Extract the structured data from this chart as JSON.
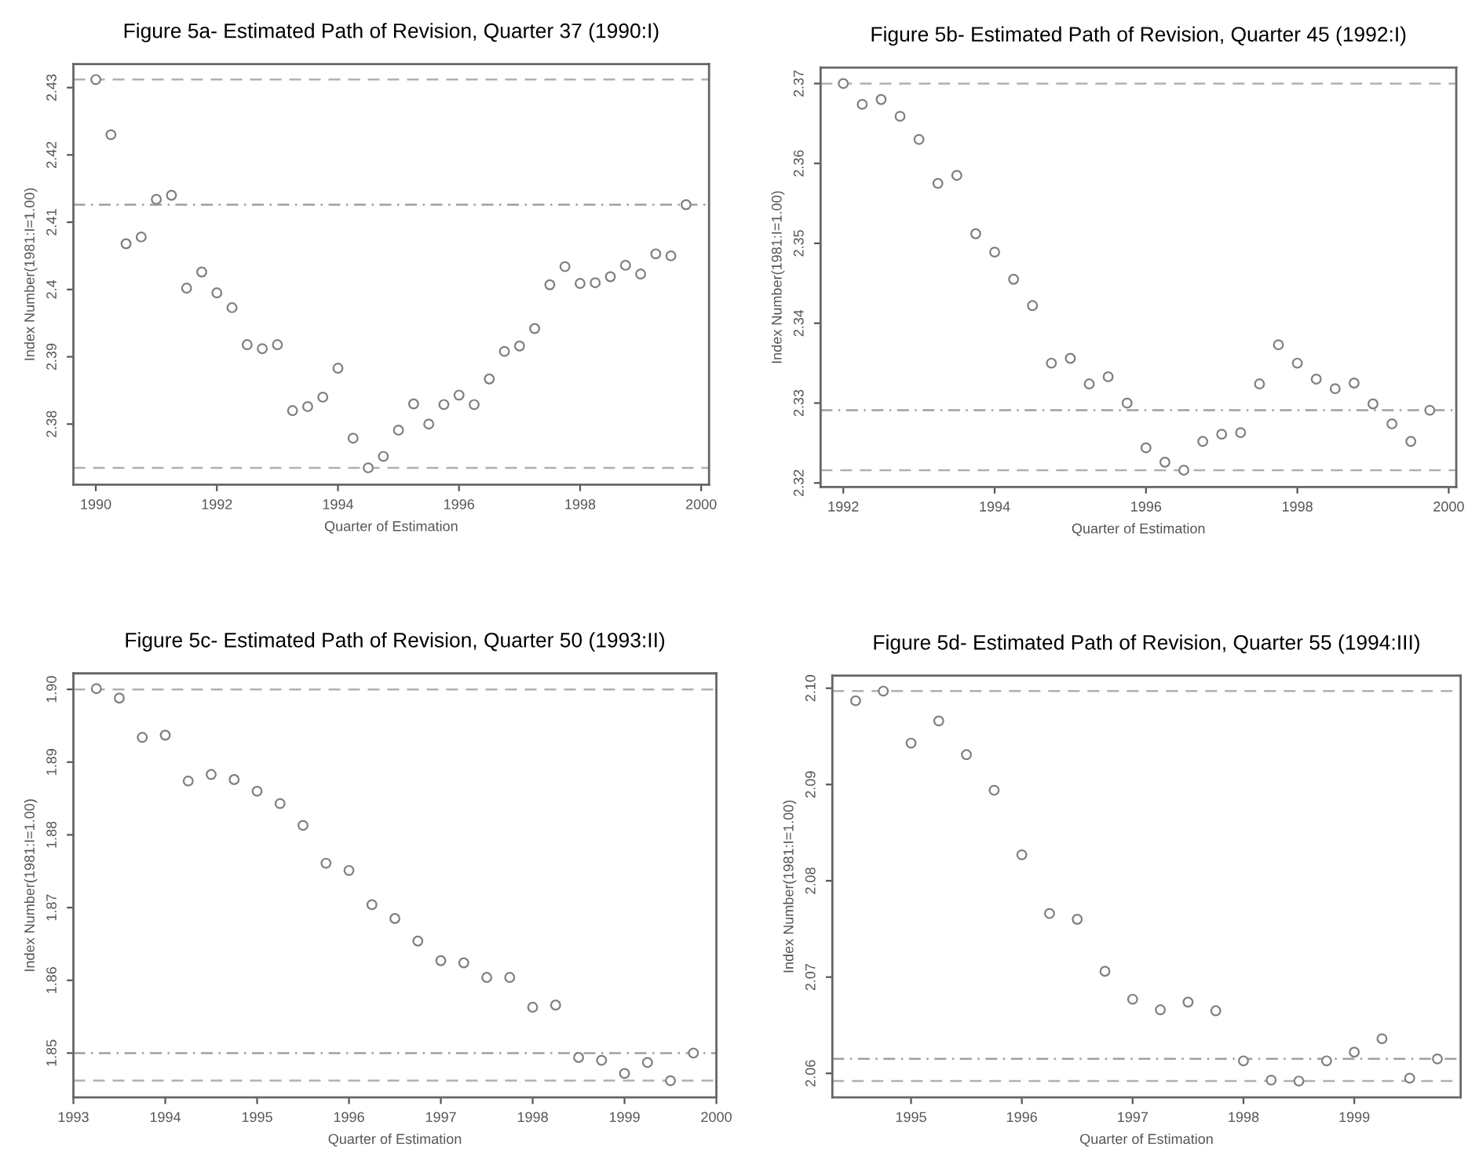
{
  "chart_data": [
    {
      "type": "scatter",
      "title": "Figure 5a- Estimated Path of Revision, Quarter 37 (1990:I)",
      "xlabel": "Quarter of Estimation",
      "ylabel": "Index Number(1981:I=1.00)",
      "marker": "circle",
      "grid": false,
      "color": "#7f7f7f",
      "x": [
        1990,
        1990.25,
        1990.5,
        1990.75,
        1991,
        1991.25,
        1991.5,
        1991.75,
        1992,
        1992.25,
        1992.5,
        1992.75,
        1993,
        1993.25,
        1993.5,
        1993.75,
        1994,
        1994.25,
        1994.5,
        1994.75,
        1995,
        1995.25,
        1995.5,
        1995.75,
        1996,
        1996.25,
        1996.5,
        1996.75,
        1997,
        1997.25,
        1997.5,
        1997.75,
        1998,
        1998.25,
        1998.5,
        1998.75,
        1999,
        1999.25,
        1999.5,
        1999.75
      ],
      "values": [
        2.4312,
        2.423,
        2.4068,
        2.4078,
        2.4134,
        2.414,
        2.4002,
        2.4026,
        2.3995,
        2.3973,
        2.3918,
        2.3912,
        2.3918,
        2.382,
        2.3826,
        2.384,
        2.3883,
        2.3779,
        2.3735,
        2.3752,
        2.3791,
        2.383,
        2.38,
        2.3829,
        2.3843,
        2.3829,
        2.3867,
        2.3908,
        2.3916,
        2.3942,
        2.4007,
        2.4034,
        2.4009,
        2.401,
        2.4019,
        2.4036,
        2.4023,
        2.4053,
        2.405,
        2.4126
      ],
      "xlim": [
        1989.63,
        2000.13
      ],
      "xticks": [
        1990,
        1992,
        1994,
        1996,
        1998,
        2000
      ],
      "ylim": [
        2.371,
        2.4335
      ],
      "yticks": [
        2.38,
        2.39,
        2.4,
        2.41,
        2.42,
        2.43
      ],
      "ref_lines": [
        {
          "axis": "y",
          "value": 2.4312,
          "color": "#b0b0b0",
          "line_style": "dashed"
        },
        {
          "axis": "y",
          "value": 2.4126,
          "color": "#a0a0a0",
          "line_style": "dashdot"
        },
        {
          "axis": "y",
          "value": 2.3735,
          "color": "#b0b0b0",
          "line_style": "dashed"
        }
      ]
    },
    {
      "type": "scatter",
      "title": "Figure 5b- Estimated Path of Revision, Quarter 45 (1992:I)",
      "xlabel": "Quarter of Estimation",
      "ylabel": "Index Number(1981:I=1.00)",
      "marker": "circle",
      "grid": false,
      "color": "#7f7f7f",
      "x": [
        1992,
        1992.25,
        1992.5,
        1992.75,
        1993,
        1993.25,
        1993.5,
        1993.75,
        1994,
        1994.25,
        1994.5,
        1994.75,
        1995,
        1995.25,
        1995.5,
        1995.75,
        1996,
        1996.25,
        1996.5,
        1996.75,
        1997,
        1997.25,
        1997.5,
        1997.75,
        1998,
        1998.25,
        1998.5,
        1998.75,
        1999,
        1999.25,
        1999.5,
        1999.75
      ],
      "values": [
        2.37,
        2.3674,
        2.368,
        2.3659,
        2.363,
        2.3575,
        2.3585,
        2.3512,
        2.3489,
        2.3455,
        2.3422,
        2.335,
        2.3356,
        2.3324,
        2.3333,
        2.33,
        2.3244,
        2.3226,
        2.3216,
        2.3252,
        2.3261,
        2.3263,
        2.3324,
        2.3373,
        2.335,
        2.333,
        2.3318,
        2.3325,
        2.3299,
        2.3274,
        2.3252,
        2.3291
      ],
      "xlim": [
        1991.7,
        2000.1
      ],
      "xticks": [
        1992,
        1994,
        1996,
        1998,
        2000
      ],
      "ylim": [
        2.3195,
        2.372
      ],
      "yticks": [
        2.32,
        2.33,
        2.34,
        2.35,
        2.36,
        2.37
      ],
      "ref_lines": [
        {
          "axis": "y",
          "value": 2.37,
          "color": "#b0b0b0",
          "line_style": "dashed"
        },
        {
          "axis": "y",
          "value": 2.3291,
          "color": "#a0a0a0",
          "line_style": "dashdot"
        },
        {
          "axis": "y",
          "value": 2.3216,
          "color": "#b0b0b0",
          "line_style": "dashed"
        }
      ]
    },
    {
      "type": "scatter",
      "title": "Figure 5c- Estimated Path of Revision, Quarter 50 (1993:II)",
      "xlabel": "Quarter of Estimation",
      "ylabel": "Index Number(1981:I=1.00)",
      "marker": "circle",
      "grid": false,
      "color": "#7f7f7f",
      "x": [
        1993.25,
        1993.5,
        1993.75,
        1994,
        1994.25,
        1994.5,
        1994.75,
        1995,
        1995.25,
        1995.5,
        1995.75,
        1996,
        1996.25,
        1996.5,
        1996.75,
        1997,
        1997.25,
        1997.5,
        1997.75,
        1998,
        1998.25,
        1998.5,
        1998.75,
        1999,
        1999.25,
        1999.5,
        1999.75
      ],
      "values": [
        1.9001,
        1.8988,
        1.8934,
        1.8937,
        1.8874,
        1.8883,
        1.8876,
        1.886,
        1.8843,
        1.8813,
        1.8761,
        1.8751,
        1.8704,
        1.8685,
        1.8654,
        1.8627,
        1.8624,
        1.8604,
        1.8604,
        1.8563,
        1.8566,
        1.8494,
        1.849,
        1.8472,
        1.8487,
        1.8462,
        1.85
      ],
      "xlim": [
        1993,
        2000
      ],
      "xticks": [
        1993,
        1994,
        1995,
        1996,
        1997,
        1998,
        1999,
        2000
      ],
      "ylim": [
        1.8439,
        1.9022
      ],
      "yticks": [
        1.85,
        1.86,
        1.87,
        1.88,
        1.89,
        {
          "value": 1.9,
          "label": "1.90"
        }
      ],
      "ref_lines": [
        {
          "axis": "y",
          "value": 1.9,
          "color": "#b0b0b0",
          "line_style": "dashed"
        },
        {
          "axis": "y",
          "value": 1.85,
          "color": "#a0a0a0",
          "line_style": "dashdot"
        },
        {
          "axis": "y",
          "value": 1.8462,
          "color": "#b0b0b0",
          "line_style": "dashed"
        }
      ]
    },
    {
      "type": "scatter",
      "title": "Figure 5d- Estimated Path of Revision, Quarter 55 (1994:III)",
      "xlabel": "Quarter of Estimation",
      "ylabel": "Index Number(1981:I=1.00)",
      "marker": "circle",
      "grid": false,
      "color": "#7f7f7f",
      "x": [
        1994.5,
        1994.75,
        1995,
        1995.25,
        1995.5,
        1995.75,
        1996,
        1996.25,
        1996.5,
        1996.75,
        1997,
        1997.25,
        1997.5,
        1997.75,
        1998,
        1998.25,
        1998.5,
        1998.75,
        1999,
        1999.25,
        1999.5,
        1999.75
      ],
      "values": [
        2.0987,
        2.0997,
        2.0943,
        2.0966,
        2.0931,
        2.0894,
        2.0827,
        2.0766,
        2.076,
        2.0706,
        2.0677,
        2.0666,
        2.0674,
        2.0665,
        2.0613,
        2.0593,
        2.0592,
        2.0613,
        2.0622,
        2.0636,
        2.0595,
        2.0615
      ],
      "xlim": [
        1994.29,
        1999.96
      ],
      "xticks": [
        1995,
        1996,
        1997,
        1998,
        1999
      ],
      "ylim": [
        2.0575,
        2.1013
      ],
      "yticks": [
        2.06,
        2.07,
        2.08,
        2.09,
        {
          "value": 2.1,
          "label": "2.10"
        }
      ],
      "ref_lines": [
        {
          "axis": "y",
          "value": 2.0997,
          "color": "#b0b0b0",
          "line_style": "dashed"
        },
        {
          "axis": "y",
          "value": 2.0615,
          "color": "#a0a0a0",
          "line_style": "dashdot"
        },
        {
          "axis": "y",
          "value": 2.0592,
          "color": "#b0b0b0",
          "line_style": "dashed"
        }
      ]
    }
  ]
}
